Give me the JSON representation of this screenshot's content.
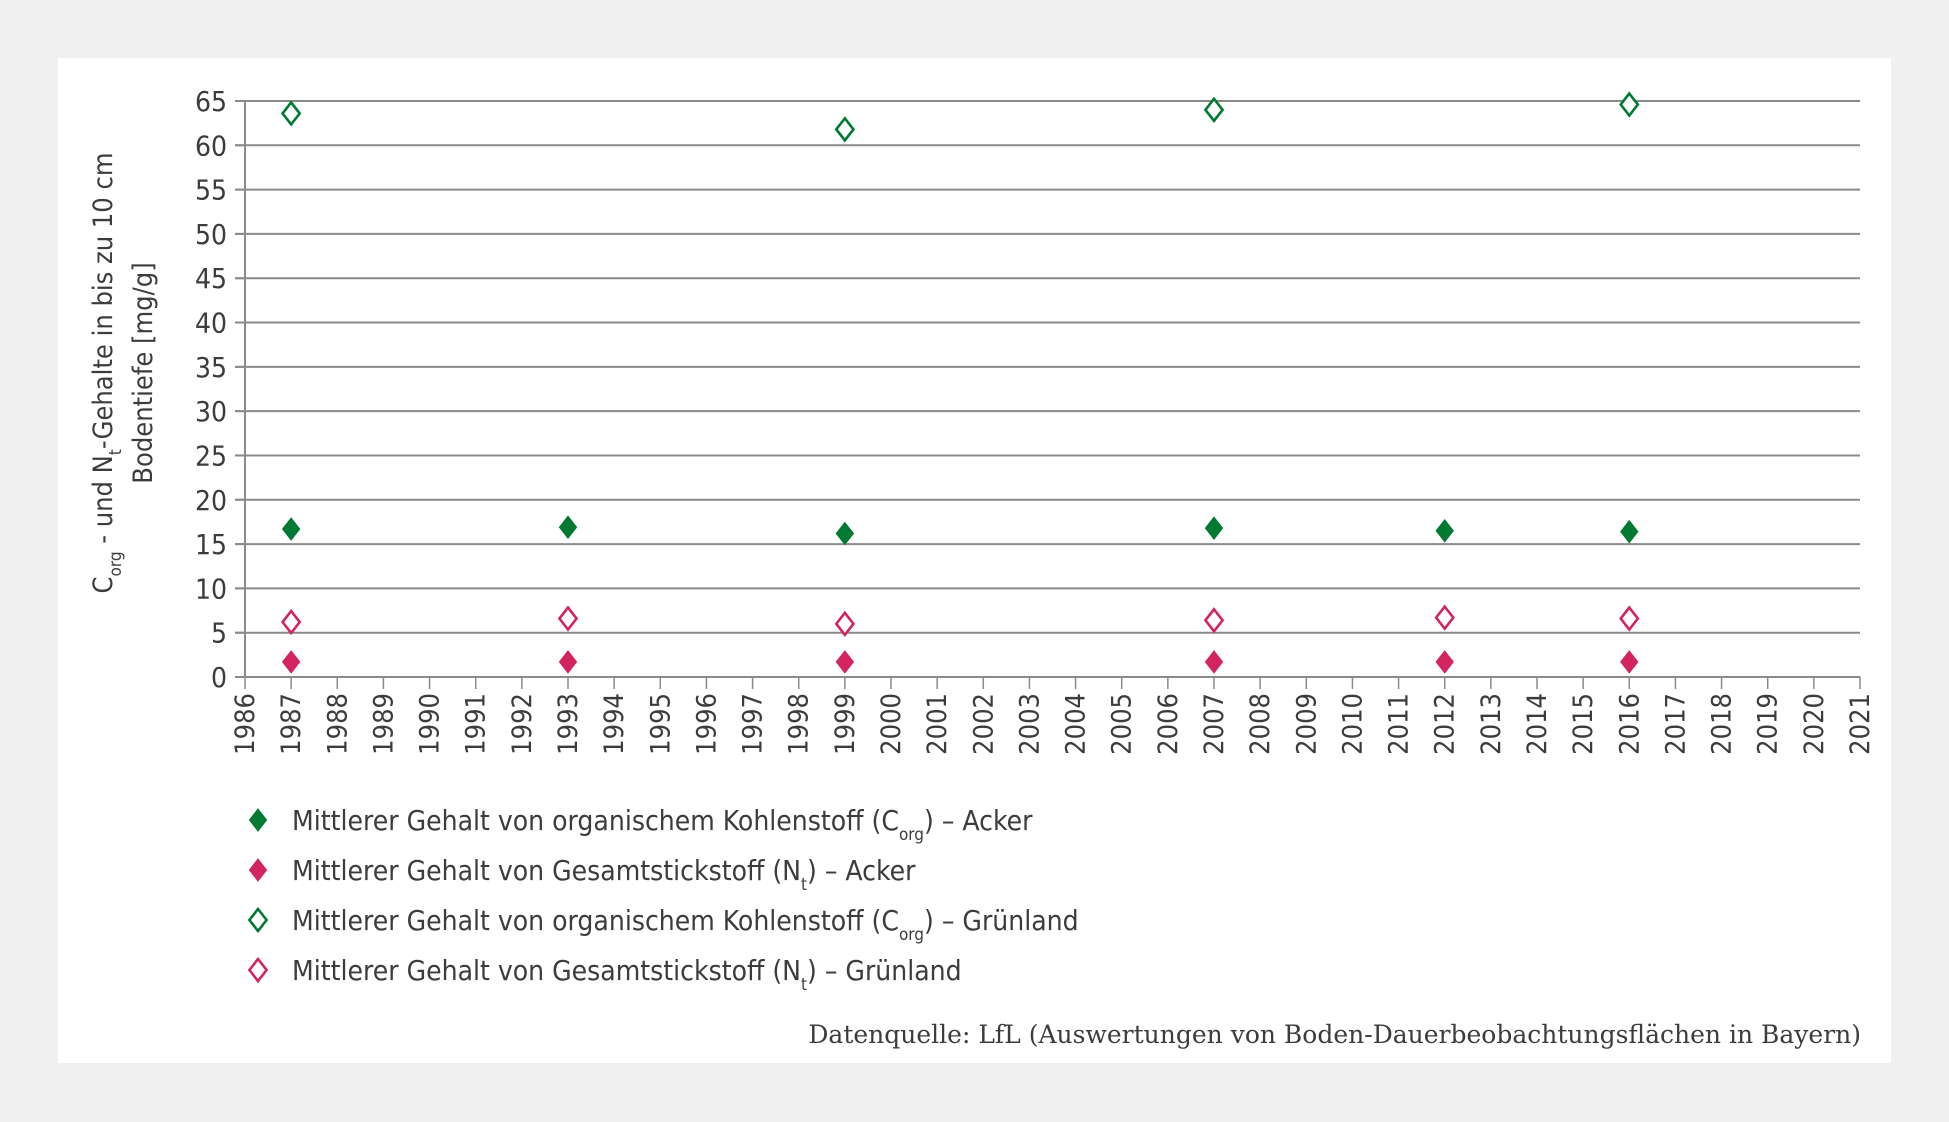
{
  "chart_data": {
    "type": "scatter",
    "ylabel": {
      "line1": {
        "c": "C",
        "c_sub": "org",
        "mid": " - und N",
        "n_sub": "t",
        "rest": "-Gehalte in bis zu 10 cm"
      },
      "line2": "Bodentiefe [mg/g]"
    },
    "xlim": [
      1986,
      2021
    ],
    "ylim": [
      0,
      65
    ],
    "yticks": [
      0,
      5,
      10,
      15,
      20,
      25,
      30,
      35,
      40,
      45,
      50,
      55,
      60,
      65
    ],
    "xticks": [
      1986,
      1987,
      1988,
      1989,
      1990,
      1991,
      1992,
      1993,
      1994,
      1995,
      1996,
      1997,
      1998,
      1999,
      2000,
      2001,
      2002,
      2003,
      2004,
      2005,
      2006,
      2007,
      2008,
      2009,
      2010,
      2011,
      2012,
      2013,
      2014,
      2015,
      2016,
      2017,
      2018,
      2019,
      2020,
      2021
    ],
    "grid": true,
    "legend_placement": "bottom-left",
    "series": [
      {
        "name": "Mittlerer Gehalt von organischem Kohlenstoff (Corg) – Acker",
        "legend": {
          "prefix": "Mittlerer Gehalt von organischem Kohlenstoff (C",
          "sub": "org",
          "suffix": ") – Acker"
        },
        "color": "#007a33",
        "filled": true,
        "x": [
          1987,
          1993,
          1999,
          2007,
          2012,
          2016
        ],
        "y": [
          16.7,
          16.9,
          16.2,
          16.8,
          16.5,
          16.4
        ]
      },
      {
        "name": "Mittlerer Gehalt von Gesamtstickstoff (Nt) – Acker",
        "legend": {
          "prefix": "Mittlerer Gehalt von Gesamtstickstoff (N",
          "sub": "t",
          "suffix": ") – Acker"
        },
        "color": "#d2255f",
        "filled": true,
        "x": [
          1987,
          1993,
          1999,
          2007,
          2012,
          2016
        ],
        "y": [
          1.7,
          1.7,
          1.7,
          1.7,
          1.7,
          1.7
        ]
      },
      {
        "name": "Mittlerer Gehalt von organischem Kohlenstoff (Corg) – Grünland",
        "legend": {
          "prefix": "Mittlerer Gehalt von organischem Kohlenstoff (C",
          "sub": "org",
          "suffix": ") – Grünland"
        },
        "color": "#007a33",
        "filled": false,
        "x": [
          1987,
          1999,
          2007,
          2016
        ],
        "y": [
          63.6,
          61.8,
          64.0,
          64.6
        ]
      },
      {
        "name": "Mittlerer Gehalt von Gesamtstickstoff (Nt) – Grünland",
        "legend": {
          "prefix": "Mittlerer Gehalt von Gesamtstickstoff (N",
          "sub": "t",
          "suffix": ") – Grünland"
        },
        "color": "#d2255f",
        "filled": false,
        "x": [
          1987,
          1993,
          1999,
          2007,
          2012,
          2016
        ],
        "y": [
          6.2,
          6.6,
          6.0,
          6.4,
          6.7,
          6.6
        ]
      }
    ],
    "source": "Datenquelle: LfL (Auswertungen von Boden-Dauerbeobachtungsflächen in Bayern)"
  }
}
